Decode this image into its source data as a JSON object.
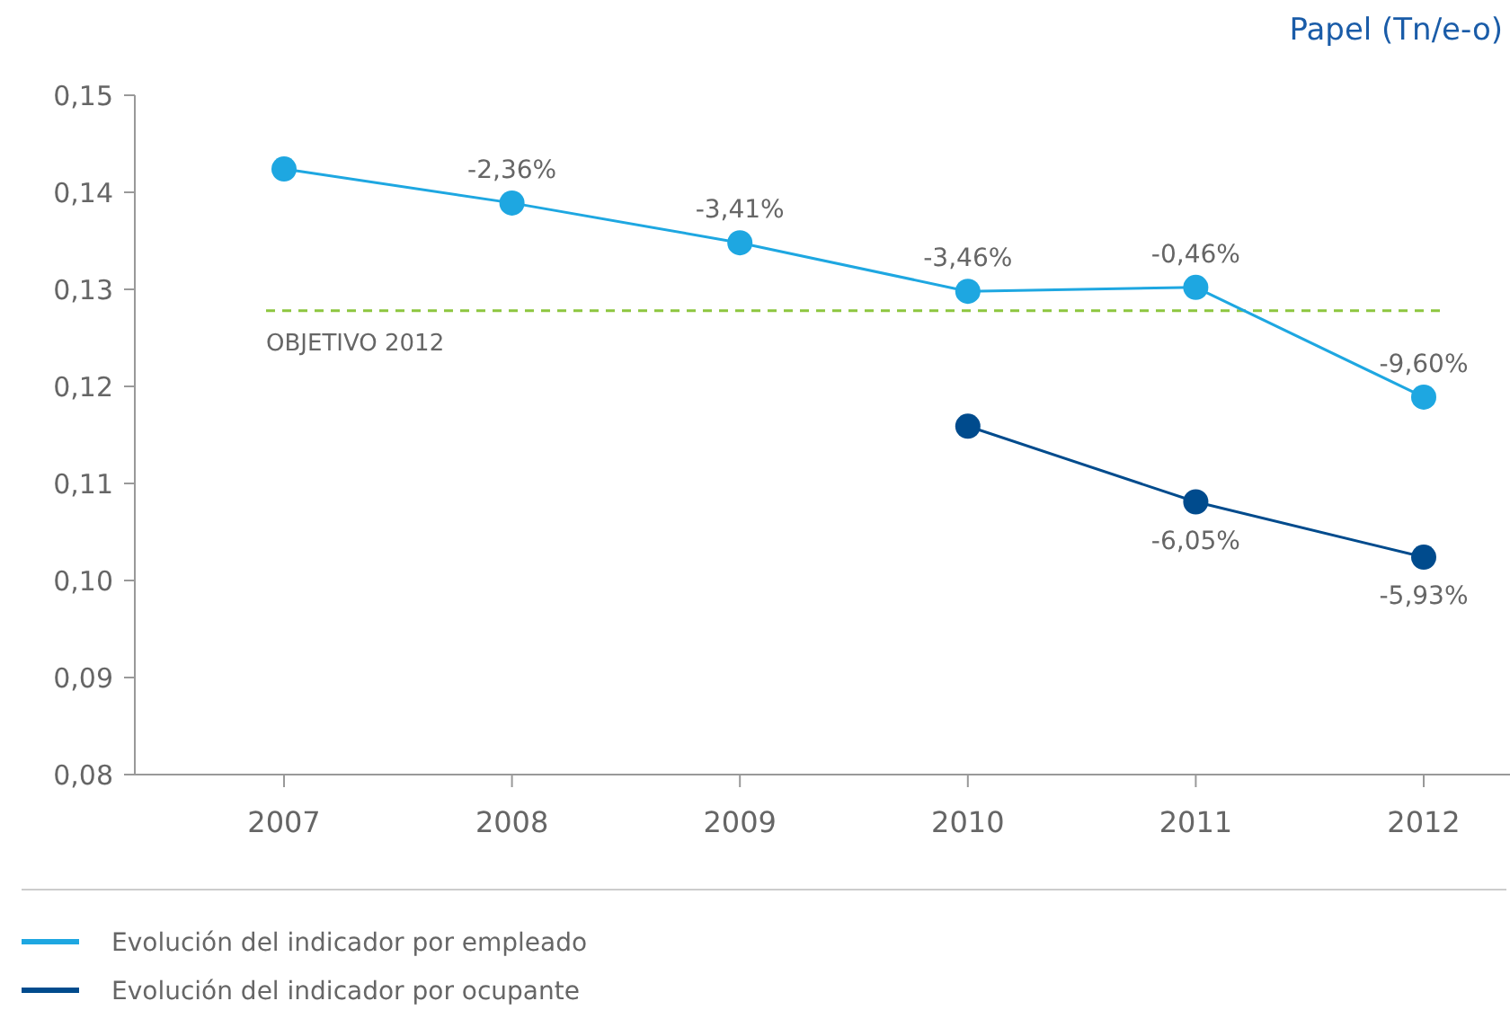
{
  "chart_data": {
    "type": "line",
    "title": "Papel (Tn/e-o)",
    "categories": [
      "2007",
      "2008",
      "2009",
      "2010",
      "2011",
      "2012"
    ],
    "series": [
      {
        "name": "Evolución del indicador por empleado",
        "color": "#1ea7e1",
        "values": [
          0.1424,
          0.1389,
          0.1348,
          0.1298,
          0.1302,
          0.1189
        ]
      },
      {
        "name": "Evolución del indicador por ocupante",
        "color": "#004b8d",
        "values": [
          null,
          null,
          null,
          0.1159,
          0.1081,
          0.1024
        ]
      }
    ],
    "annotations": [
      {
        "text": "-2,36%",
        "x": "2008",
        "y": 0.1389
      },
      {
        "text": "-3,41%",
        "x": "2009",
        "y": 0.1348
      },
      {
        "text": "-3,46%",
        "x": "2010",
        "y": 0.1298
      },
      {
        "text": "-0,46%",
        "x": "2011",
        "y": 0.1302
      },
      {
        "text": "-9,60%",
        "x": "2012",
        "y": 0.1189
      },
      {
        "text": "-6,05%",
        "x": "2011",
        "y": 0.1081
      },
      {
        "text": "-5,93%",
        "x": "2012",
        "y": 0.1024
      }
    ],
    "ylim": [
      0.08,
      0.15
    ],
    "yticks": [
      {
        "value": 0.08,
        "label": "0,08"
      },
      {
        "value": 0.09,
        "label": "0,09"
      },
      {
        "value": 0.1,
        "label": "0,10"
      },
      {
        "value": 0.11,
        "label": "0,11"
      },
      {
        "value": 0.12,
        "label": "0,12"
      },
      {
        "value": 0.13,
        "label": "0,13"
      },
      {
        "value": 0.14,
        "label": "0,14"
      },
      {
        "value": 0.15,
        "label": "0,15"
      }
    ],
    "ref_lines": [
      {
        "axis": "y",
        "value": 0.1278,
        "label": "OBJETIVO 2012",
        "color": "#8dc63f",
        "line_style": "dashed"
      }
    ],
    "grid": false,
    "legend": "bottom",
    "marker": "circle",
    "line_style": "solid"
  }
}
